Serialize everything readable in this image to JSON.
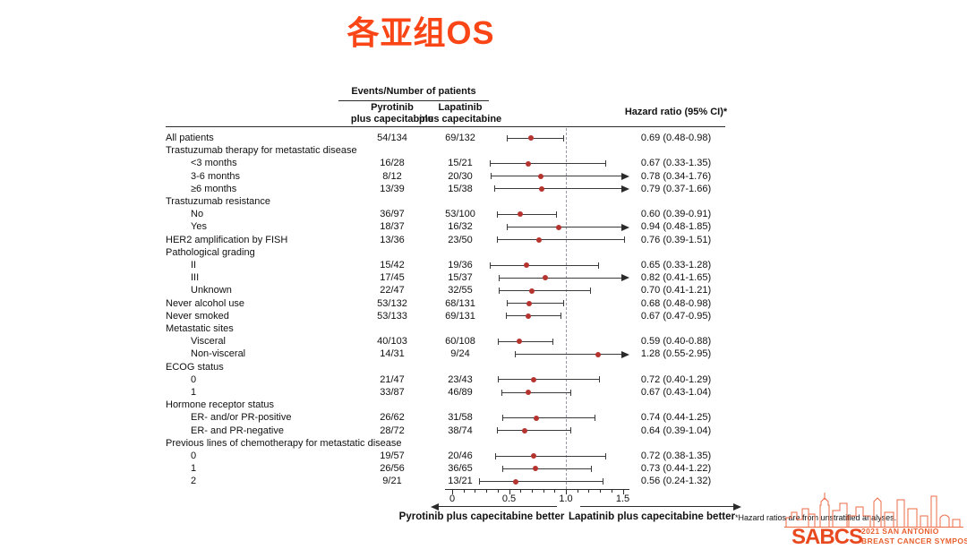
{
  "title": "各亚组OS",
  "colors": {
    "title": "#FA4616",
    "marker": "#B5342F",
    "line": "#3a3a3a",
    "logo_strong": "#E8491F",
    "logo_light": "#ED6A45"
  },
  "columns": {
    "events_header": "Events/Number of patients",
    "arm1": {
      "name": "Pyrotinib",
      "sub": "plus capecitabine"
    },
    "arm2": {
      "name": "Lapatinib",
      "sub": "plus capecitabine"
    },
    "hazard_header": "Hazard ratio (95% CI)*"
  },
  "chart_data": {
    "type": "scatter",
    "subtype": "forest-plot",
    "title": "各亚组OS",
    "xlabel": "Hazard ratio",
    "xlim": [
      0,
      1.55
    ],
    "x_ticks": [
      0,
      0.5,
      1.0,
      1.5
    ],
    "x_tick_labels": [
      "0",
      "0.5",
      "1.0",
      "1.5"
    ],
    "minor_tick_step": 0.1,
    "reference_line": 1.0,
    "grid": false,
    "legend_position": "none",
    "rows": [
      {
        "label": "All patients",
        "indent": 0,
        "group": false,
        "pyrotinib": "54/134",
        "lapatinib": "69/132",
        "hr": 0.69,
        "ci_low": 0.48,
        "ci_high": 0.98,
        "hr_text": "0.69 (0.48-0.98)",
        "arrow": false
      },
      {
        "label": "Trastuzumab therapy for metastatic disease",
        "indent": 0,
        "group": true
      },
      {
        "label": "<3 months",
        "indent": 1,
        "group": false,
        "pyrotinib": "16/28",
        "lapatinib": "15/21",
        "hr": 0.67,
        "ci_low": 0.33,
        "ci_high": 1.35,
        "hr_text": "0.67 (0.33-1.35)",
        "arrow": false
      },
      {
        "label": "3-6 months",
        "indent": 1,
        "group": false,
        "pyrotinib": "8/12",
        "lapatinib": "20/30",
        "hr": 0.78,
        "ci_low": 0.34,
        "ci_high": 1.76,
        "hr_text": "0.78 (0.34-1.76)",
        "arrow": true
      },
      {
        "label": "≥6 months",
        "indent": 1,
        "group": false,
        "pyrotinib": "13/39",
        "lapatinib": "15/38",
        "hr": 0.79,
        "ci_low": 0.37,
        "ci_high": 1.66,
        "hr_text": "0.79 (0.37-1.66)",
        "arrow": true
      },
      {
        "label": "Trastuzumab resistance",
        "indent": 0,
        "group": true
      },
      {
        "label": "No",
        "indent": 1,
        "group": false,
        "pyrotinib": "36/97",
        "lapatinib": "53/100",
        "hr": 0.6,
        "ci_low": 0.39,
        "ci_high": 0.91,
        "hr_text": "0.60 (0.39-0.91)",
        "arrow": false
      },
      {
        "label": "Yes",
        "indent": 1,
        "group": false,
        "pyrotinib": "18/37",
        "lapatinib": "16/32",
        "hr": 0.94,
        "ci_low": 0.48,
        "ci_high": 1.85,
        "hr_text": "0.94 (0.48-1.85)",
        "arrow": true
      },
      {
        "label": "HER2 amplification by FISH",
        "indent": 0,
        "group": false,
        "pyrotinib": "13/36",
        "lapatinib": "23/50",
        "hr": 0.76,
        "ci_low": 0.39,
        "ci_high": 1.51,
        "hr_text": "0.76 (0.39-1.51)",
        "arrow": false
      },
      {
        "label": "Pathological grading",
        "indent": 0,
        "group": true
      },
      {
        "label": "II",
        "indent": 1,
        "group": false,
        "pyrotinib": "15/42",
        "lapatinib": "19/36",
        "hr": 0.65,
        "ci_low": 0.33,
        "ci_high": 1.28,
        "hr_text": "0.65 (0.33-1.28)",
        "arrow": false
      },
      {
        "label": "III",
        "indent": 1,
        "group": false,
        "pyrotinib": "17/45",
        "lapatinib": "15/37",
        "hr": 0.82,
        "ci_low": 0.41,
        "ci_high": 1.65,
        "hr_text": "0.82 (0.41-1.65)",
        "arrow": true
      },
      {
        "label": "Unknown",
        "indent": 1,
        "group": false,
        "pyrotinib": "22/47",
        "lapatinib": "32/55",
        "hr": 0.7,
        "ci_low": 0.41,
        "ci_high": 1.21,
        "hr_text": "0.70 (0.41-1.21)",
        "arrow": false
      },
      {
        "label": "Never alcohol use",
        "indent": 0,
        "group": false,
        "pyrotinib": "53/132",
        "lapatinib": "68/131",
        "hr": 0.68,
        "ci_low": 0.48,
        "ci_high": 0.98,
        "hr_text": "0.68 (0.48-0.98)",
        "arrow": false
      },
      {
        "label": "Never smoked",
        "indent": 0,
        "group": false,
        "pyrotinib": "53/133",
        "lapatinib": "69/131",
        "hr": 0.67,
        "ci_low": 0.47,
        "ci_high": 0.95,
        "hr_text": "0.67 (0.47-0.95)",
        "arrow": false
      },
      {
        "label": "Metastatic sites",
        "indent": 0,
        "group": true
      },
      {
        "label": "Visceral",
        "indent": 1,
        "group": false,
        "pyrotinib": "40/103",
        "lapatinib": "60/108",
        "hr": 0.59,
        "ci_low": 0.4,
        "ci_high": 0.88,
        "hr_text": "0.59 (0.40-0.88)",
        "arrow": false
      },
      {
        "label": "Non-visceral",
        "indent": 1,
        "group": false,
        "pyrotinib": "14/31",
        "lapatinib": "9/24",
        "hr": 1.28,
        "ci_low": 0.55,
        "ci_high": 2.95,
        "hr_text": "1.28 (0.55-2.95)",
        "arrow": true
      },
      {
        "label": "ECOG status",
        "indent": 0,
        "group": true
      },
      {
        "label": "0",
        "indent": 1,
        "group": false,
        "pyrotinib": "21/47",
        "lapatinib": "23/43",
        "hr": 0.72,
        "ci_low": 0.4,
        "ci_high": 1.29,
        "hr_text": "0.72 (0.40-1.29)",
        "arrow": false
      },
      {
        "label": "1",
        "indent": 1,
        "group": false,
        "pyrotinib": "33/87",
        "lapatinib": "46/89",
        "hr": 0.67,
        "ci_low": 0.43,
        "ci_high": 1.04,
        "hr_text": "0.67 (0.43-1.04)",
        "arrow": false
      },
      {
        "label": "Hormone receptor status",
        "indent": 0,
        "group": true
      },
      {
        "label": "ER- and/or PR-positive",
        "indent": 1,
        "group": false,
        "pyrotinib": "26/62",
        "lapatinib": "31/58",
        "hr": 0.74,
        "ci_low": 0.44,
        "ci_high": 1.25,
        "hr_text": "0.74 (0.44-1.25)",
        "arrow": false
      },
      {
        "label": "ER- and PR-negative",
        "indent": 1,
        "group": false,
        "pyrotinib": "28/72",
        "lapatinib": "38/74",
        "hr": 0.64,
        "ci_low": 0.39,
        "ci_high": 1.04,
        "hr_text": "0.64 (0.39-1.04)",
        "arrow": false
      },
      {
        "label": "Previous lines of chemotherapy for metastatic disease",
        "indent": 0,
        "group": true
      },
      {
        "label": "0",
        "indent": 1,
        "group": false,
        "pyrotinib": "19/57",
        "lapatinib": "20/46",
        "hr": 0.72,
        "ci_low": 0.38,
        "ci_high": 1.35,
        "hr_text": "0.72 (0.38-1.35)",
        "arrow": false
      },
      {
        "label": "1",
        "indent": 1,
        "group": false,
        "pyrotinib": "26/56",
        "lapatinib": "36/65",
        "hr": 0.73,
        "ci_low": 0.44,
        "ci_high": 1.22,
        "hr_text": "0.73 (0.44-1.22)",
        "arrow": false
      },
      {
        "label": "2",
        "indent": 1,
        "group": false,
        "pyrotinib": "9/21",
        "lapatinib": "13/21",
        "hr": 0.56,
        "ci_low": 0.24,
        "ci_high": 1.32,
        "hr_text": "0.56 (0.24-1.32)",
        "arrow": false
      }
    ]
  },
  "footer": {
    "left_better": "Pyrotinib plus capecitabine better",
    "right_better": "Lapatinib plus capecitabine better",
    "footnote": "*Hazard ratios are from unstratified analyses."
  },
  "logo": {
    "wordmark": "SABCS",
    "line1": "2021 SAN ANTONIO",
    "line2": "BREAST CANCER SYMPOSIUM"
  }
}
